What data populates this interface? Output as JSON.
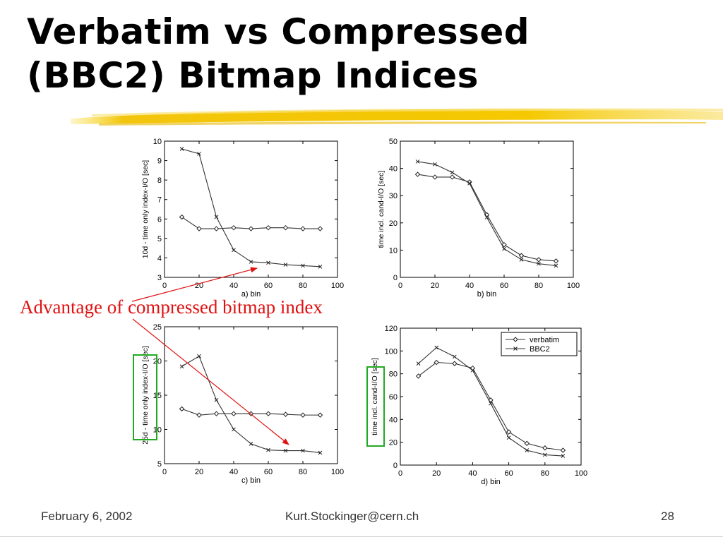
{
  "slide": {
    "title_line1": "Verbatim vs Compressed",
    "title_line2": "(BBC2) Bitmap Indices",
    "annotation": "Advantage of compressed bitmap index",
    "footer": {
      "date": "February 6, 2002",
      "email": "Kurt.Stockinger@cern.ch",
      "page": "28"
    },
    "colors": {
      "annotation": "#e01010",
      "highlight_box": "#22aa22",
      "brush": "#f2c200"
    }
  },
  "chart_data": [
    {
      "type": "line",
      "xlabel": "a) bin",
      "ylabel": "10d - time only index-I/O [sec]",
      "xlim": [
        0,
        100
      ],
      "ylim": [
        3,
        10
      ],
      "xticks": [
        0,
        20,
        40,
        60,
        80,
        100
      ],
      "yticks": [
        3,
        4,
        5,
        6,
        7,
        8,
        9,
        10
      ],
      "series": [
        {
          "marker": "diamond",
          "x": [
            10,
            20,
            30,
            40,
            50,
            60,
            70,
            80,
            90
          ],
          "values": [
            6.1,
            5.5,
            5.5,
            5.55,
            5.5,
            5.55,
            5.55,
            5.5,
            5.5
          ]
        },
        {
          "marker": "x",
          "x": [
            10,
            20,
            30,
            40,
            50,
            60,
            70,
            80,
            90
          ],
          "values": [
            9.6,
            9.35,
            6.1,
            4.4,
            3.8,
            3.75,
            3.65,
            3.6,
            3.55
          ]
        }
      ]
    },
    {
      "type": "line",
      "xlabel": "b) bin",
      "ylabel": "time incl. cand-I/O [sec]",
      "xlim": [
        0,
        100
      ],
      "ylim": [
        0,
        50
      ],
      "xticks": [
        0,
        20,
        40,
        60,
        80,
        100
      ],
      "yticks": [
        0,
        10,
        20,
        30,
        40,
        50
      ],
      "series": [
        {
          "marker": "diamond",
          "x": [
            10,
            20,
            30,
            40,
            50,
            60,
            70,
            80,
            90
          ],
          "values": [
            37.8,
            36.8,
            36.8,
            35.0,
            23.0,
            12.0,
            8.0,
            6.5,
            6.0
          ]
        },
        {
          "marker": "x",
          "x": [
            10,
            20,
            30,
            40,
            50,
            60,
            70,
            80,
            90
          ],
          "values": [
            42.5,
            41.5,
            38.5,
            34.5,
            22.0,
            10.5,
            6.5,
            5.0,
            4.3
          ]
        }
      ]
    },
    {
      "type": "line",
      "xlabel": "c) bin",
      "ylabel": "25d - time only index-I/O [sec]",
      "xlim": [
        0,
        100
      ],
      "ylim": [
        5,
        25
      ],
      "xticks": [
        0,
        20,
        40,
        60,
        80,
        100
      ],
      "yticks": [
        5,
        10,
        15,
        20,
        25
      ],
      "series": [
        {
          "marker": "diamond",
          "x": [
            10,
            20,
            30,
            40,
            50,
            60,
            70,
            80,
            90
          ],
          "values": [
            13.0,
            12.1,
            12.3,
            12.3,
            12.3,
            12.3,
            12.2,
            12.1,
            12.1
          ]
        },
        {
          "marker": "x",
          "x": [
            10,
            20,
            30,
            40,
            50,
            60,
            70,
            80,
            90
          ],
          "values": [
            19.2,
            20.7,
            14.3,
            10.0,
            7.9,
            7.0,
            6.9,
            6.9,
            6.6
          ]
        }
      ]
    },
    {
      "type": "line",
      "xlabel": "d) bin",
      "ylabel": "time incl. cand-I/O [sec]",
      "xlim": [
        0,
        100
      ],
      "ylim": [
        0,
        120
      ],
      "xticks": [
        0,
        20,
        40,
        60,
        80,
        100
      ],
      "yticks": [
        0,
        20,
        40,
        60,
        80,
        100,
        120
      ],
      "legend_position": "top-right",
      "series": [
        {
          "name": "verbatim",
          "marker": "diamond",
          "x": [
            10,
            20,
            30,
            40,
            50,
            60,
            70,
            80,
            90
          ],
          "values": [
            78,
            90,
            89,
            85,
            57,
            29,
            19,
            15,
            13
          ]
        },
        {
          "name": "BBC2",
          "marker": "x",
          "x": [
            10,
            20,
            30,
            40,
            50,
            60,
            70,
            80,
            90
          ],
          "values": [
            89,
            103,
            95,
            83,
            54,
            24,
            13,
            9,
            8
          ]
        }
      ]
    }
  ]
}
